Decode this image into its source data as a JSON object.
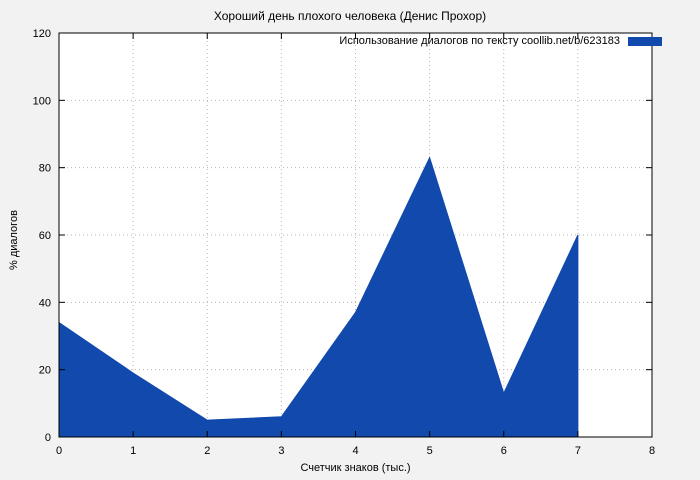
{
  "chart_data": {
    "type": "area",
    "title": "Хороший день плохого человека (Денис Прохор)",
    "legend": "Использование диалогов по тексту coollib.net/b/623183",
    "xlabel": "Счетчик знаков (тыс.)",
    "ylabel": "% диалогов",
    "x": [
      0,
      1,
      2,
      3,
      4,
      5,
      6,
      7
    ],
    "values": [
      34,
      19,
      5,
      6,
      37,
      83,
      13,
      60
    ],
    "xlim": [
      0,
      8
    ],
    "ylim": [
      0,
      120
    ],
    "xticks": [
      0,
      1,
      2,
      3,
      4,
      5,
      6,
      7,
      8
    ],
    "yticks": [
      0,
      20,
      40,
      60,
      80,
      100,
      120
    ],
    "grid": true,
    "legend_position": "top-right",
    "colors": {
      "fill": "#1149ad",
      "plot_background": "#ffffff",
      "figure_background": "#f2f2f2",
      "grid": "#b5b5b5",
      "axis": "#000000"
    }
  }
}
